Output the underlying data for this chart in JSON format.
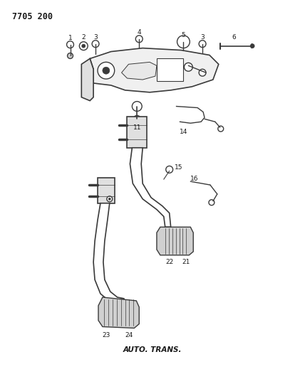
{
  "title": "7705 200",
  "subtitle": "AUTO. TRANS.",
  "bg_color": "#ffffff",
  "line_color": "#3a3a3a",
  "text_color": "#1a1a1a",
  "fig_width": 4.28,
  "fig_height": 5.33,
  "dpi": 100
}
